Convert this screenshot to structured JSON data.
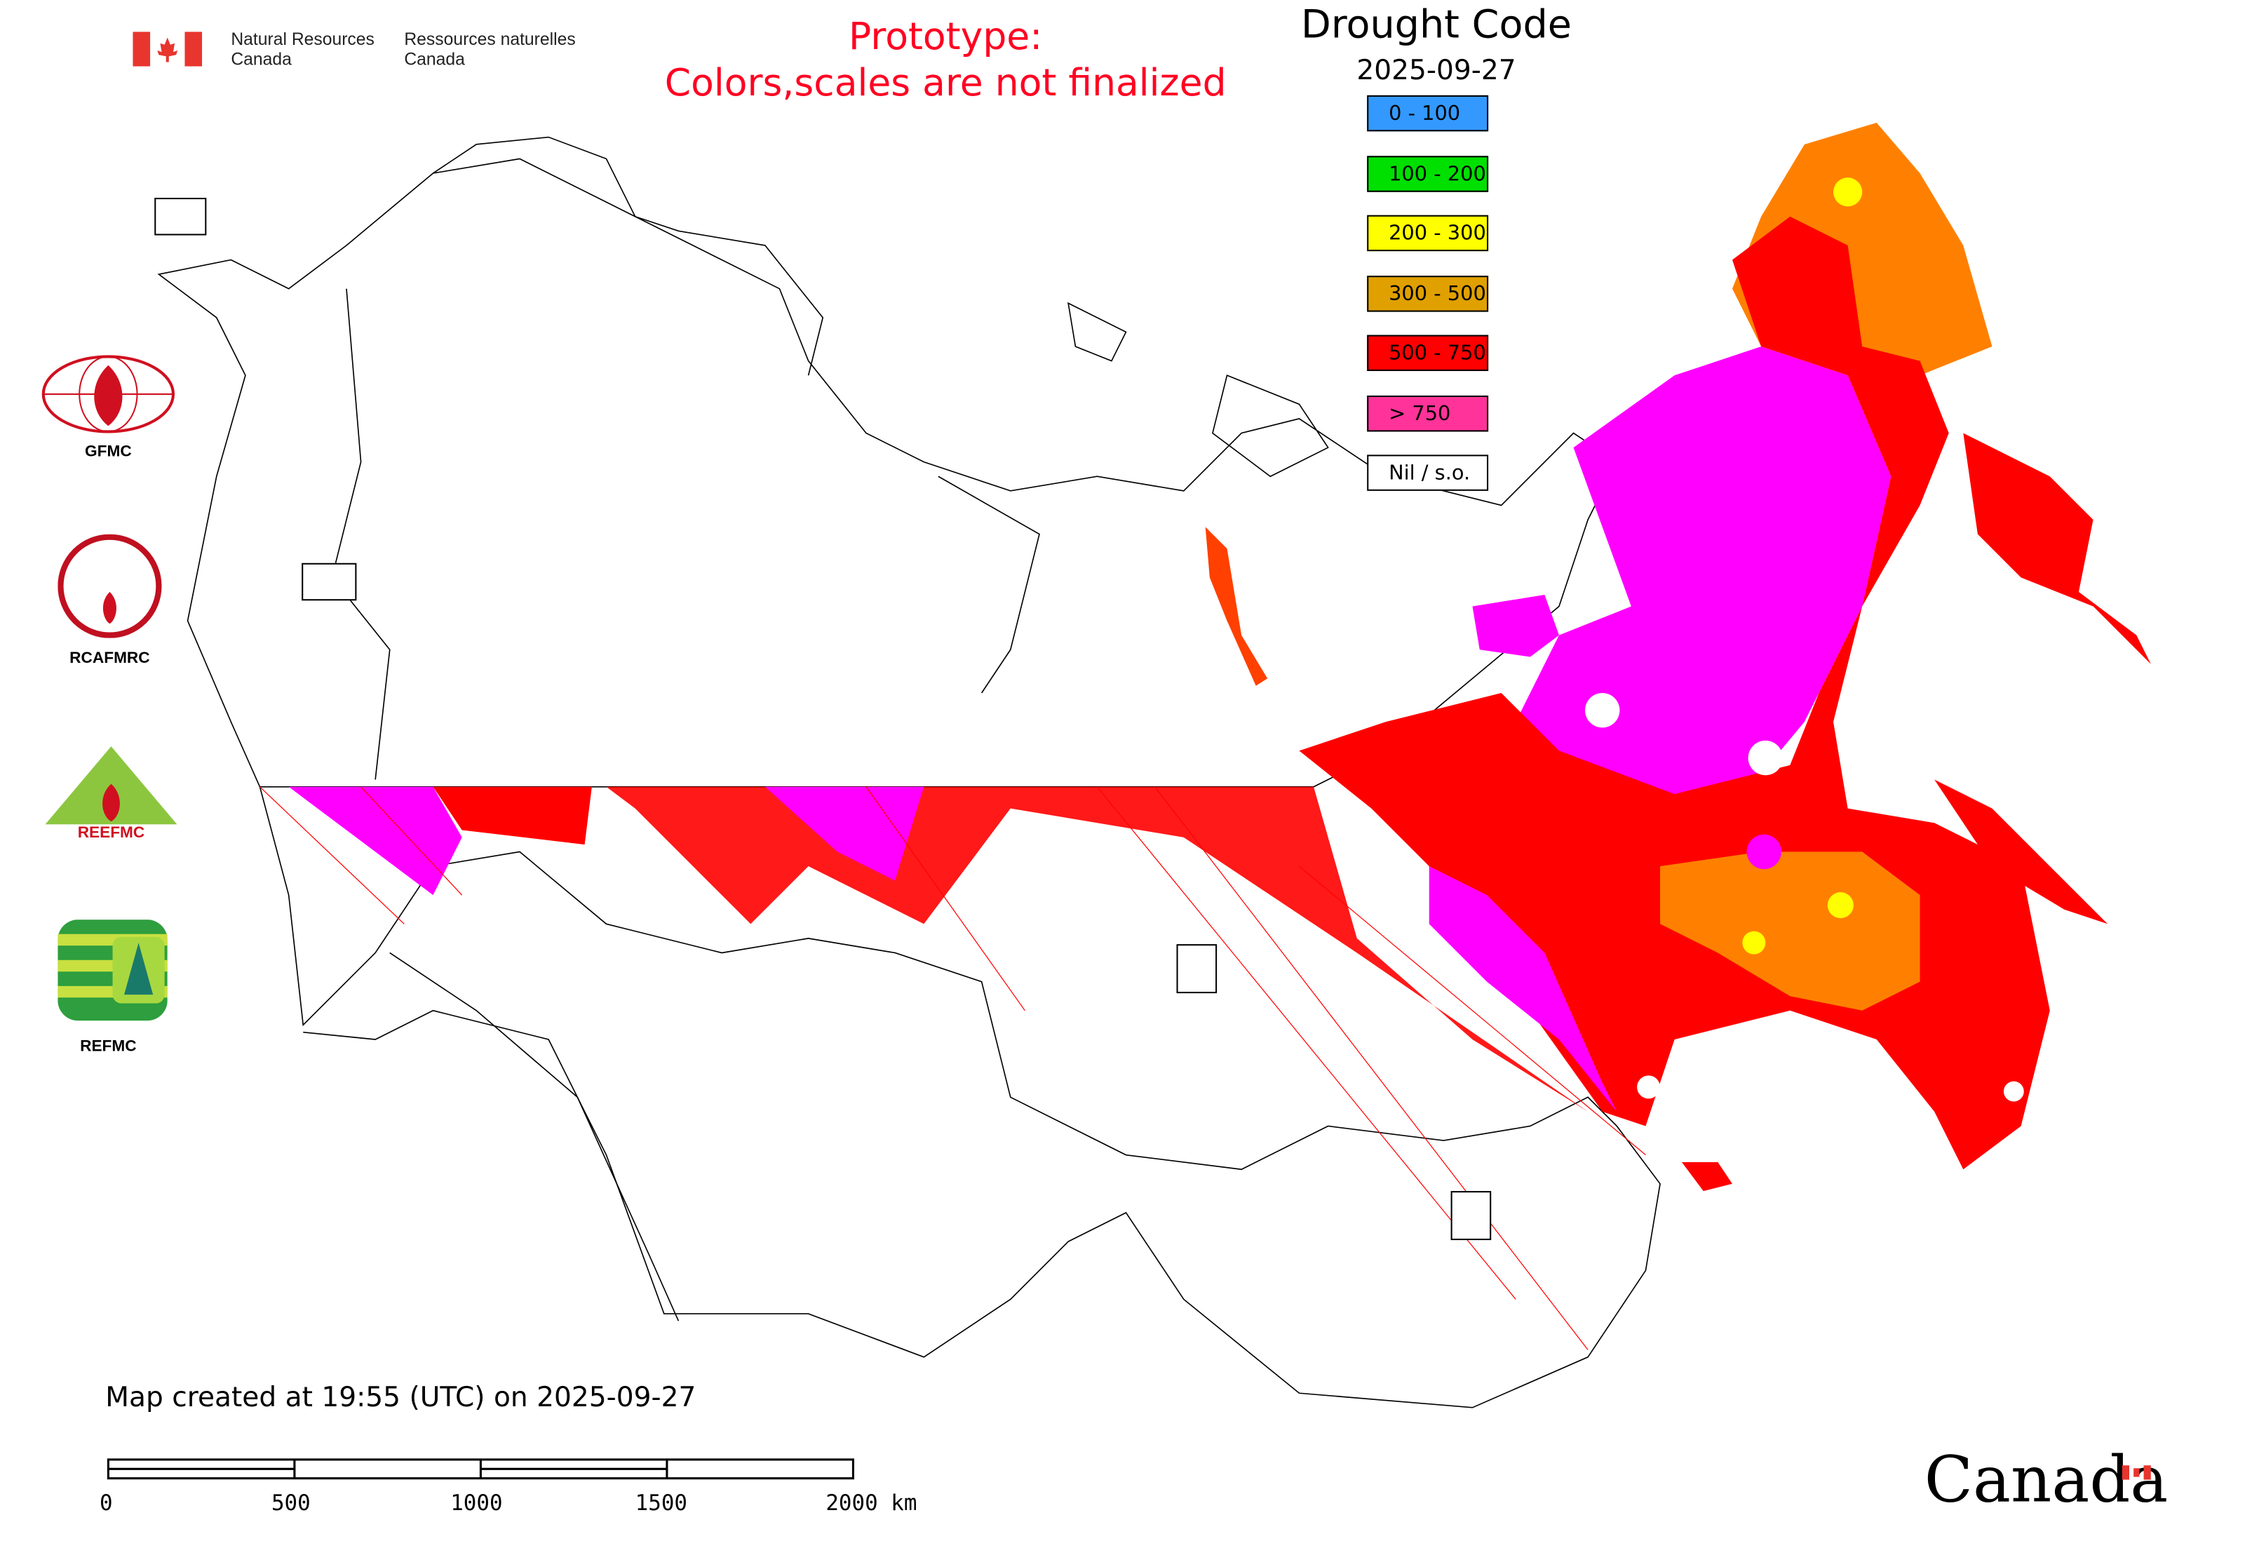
{
  "header": {
    "dept_en_line1": "Natural Resources",
    "dept_en_line2": "Canada",
    "dept_fr_line1": "Ressources naturelles",
    "dept_fr_line2": "Canada",
    "prototype_line1": "Prototype:",
    "prototype_line2": "Colors,scales are not finalized"
  },
  "legend": {
    "title": "Drought Code",
    "date": "2025-09-27",
    "items": [
      {
        "label": "0 - 100",
        "color": "#3399ff"
      },
      {
        "label": "100 - 200",
        "color": "#00e000"
      },
      {
        "label": "200 - 300",
        "color": "#ffff00"
      },
      {
        "label": "300 - 500",
        "color": "#e0a000"
      },
      {
        "label": "500 - 750",
        "color": "#ff0000"
      },
      {
        "label": "> 750",
        "color": "#ff3399"
      },
      {
        "label": "Nil / s.o.",
        "color": "#ffffff"
      }
    ]
  },
  "logos": {
    "gfmc": "GFMC",
    "rcafmrc": "RCAFMRC",
    "reefmc": "REEFMC",
    "refmc": "REFMC"
  },
  "footer": {
    "created": "Map created at 19:55 (UTC) on 2025-09-27",
    "scale_labels": [
      "0",
      "500",
      "1000",
      "1500",
      "2000 km"
    ],
    "wordmark": "Canada"
  },
  "map_colors": {
    "magenta": "#ff00ff",
    "red": "#ff0000",
    "orange": "#ff8000",
    "yellow": "#ffff00"
  }
}
